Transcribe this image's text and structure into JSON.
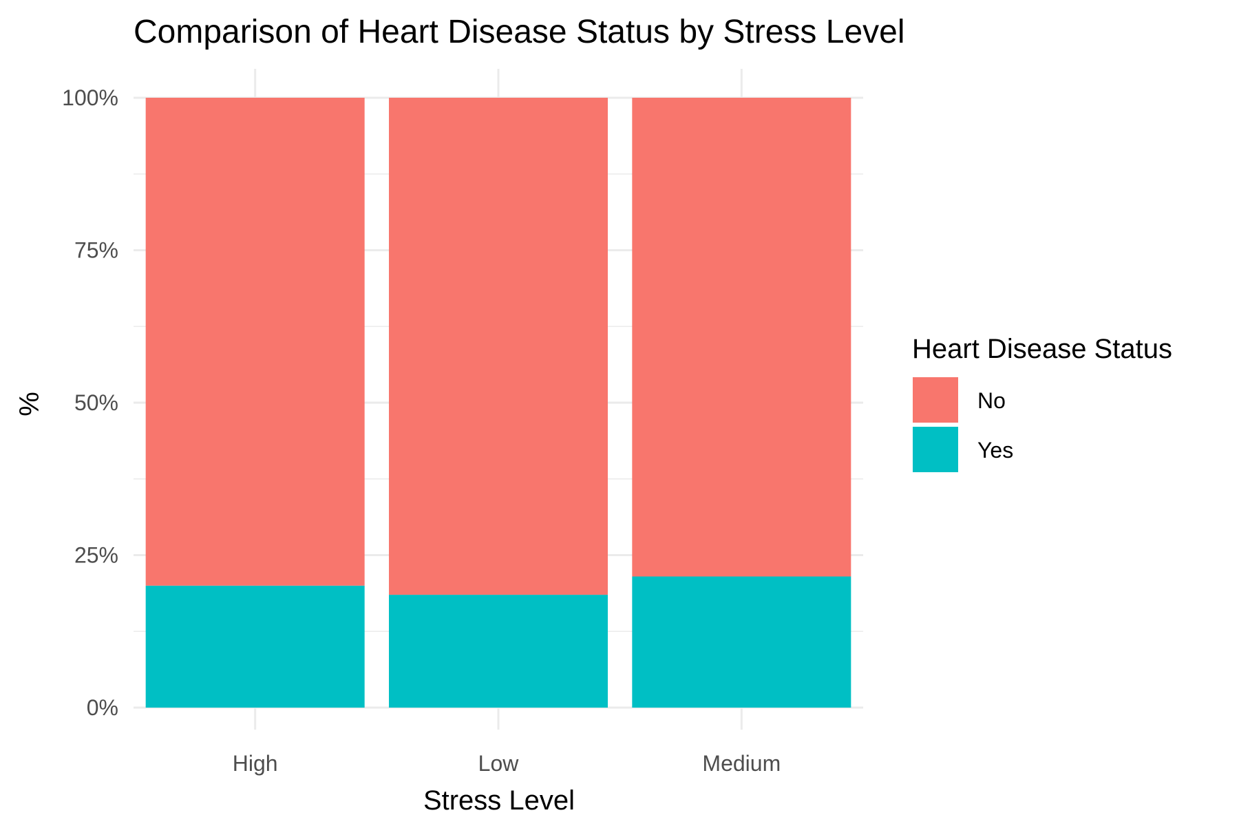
{
  "chart_data": {
    "type": "bar",
    "stacked": true,
    "title": "Comparison of Heart Disease Status by Stress Level",
    "xlabel": "Stress Level",
    "ylabel": "%",
    "ylim": [
      0,
      1
    ],
    "y_ticks": [
      0,
      0.25,
      0.5,
      0.75,
      1.0
    ],
    "y_tick_labels": [
      "0%",
      "25%",
      "50%",
      "75%",
      "100%"
    ],
    "categories": [
      "High",
      "Low",
      "Medium"
    ],
    "series": [
      {
        "name": "Yes",
        "color": "#00BFC4",
        "values": [
          0.2,
          0.185,
          0.215
        ]
      },
      {
        "name": "No",
        "color": "#F8766D",
        "values": [
          0.8,
          0.815,
          0.785
        ]
      }
    ],
    "legend": {
      "title": "Heart Disease Status",
      "position": "right",
      "entries": [
        {
          "label": "No",
          "color": "#F8766D"
        },
        {
          "label": "Yes",
          "color": "#00BFC4"
        }
      ]
    },
    "grid": true
  }
}
